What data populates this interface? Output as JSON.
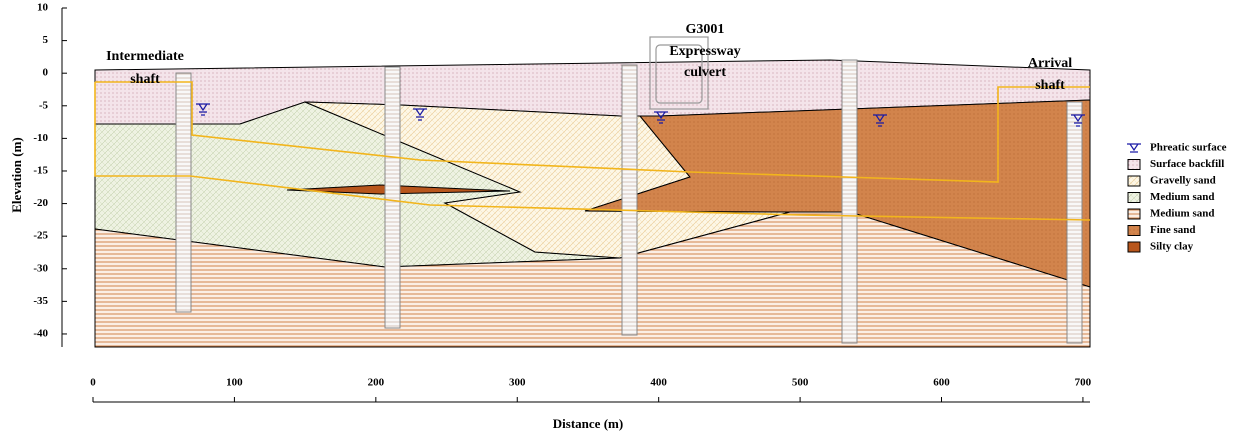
{
  "chart_data": {
    "type": "section",
    "xlabel": "Distance (m)",
    "ylabel": "Elevation (m)",
    "xlim": [
      0,
      705
    ],
    "ylim": [
      -42,
      10
    ],
    "xticks": [
      0,
      100,
      200,
      300,
      400,
      500,
      600,
      700
    ],
    "yticks": [
      10,
      5,
      0,
      -5,
      -10,
      -15,
      -20,
      -25,
      -30,
      -35,
      -40
    ],
    "annotations": [
      "Intermediate",
      "shaft",
      "G3001",
      "Expressway",
      "culvert",
      "Arrival",
      "shaft"
    ],
    "legend": [
      {
        "name": "Phreatic surface",
        "color": "#1a1aa6"
      },
      {
        "name": "Surface backfill",
        "color": "#f4e4ea"
      },
      {
        "name": "Gravelly sand",
        "color": "#fdf7e6"
      },
      {
        "name": "Medium sand",
        "color": "#eef2e2"
      },
      {
        "name": "Medium sand",
        "color": "#f6d7bf"
      },
      {
        "name": "Fine sand",
        "color": "#d2844c"
      },
      {
        "name": "Silty clay",
        "color": "#b8561c"
      }
    ]
  }
}
